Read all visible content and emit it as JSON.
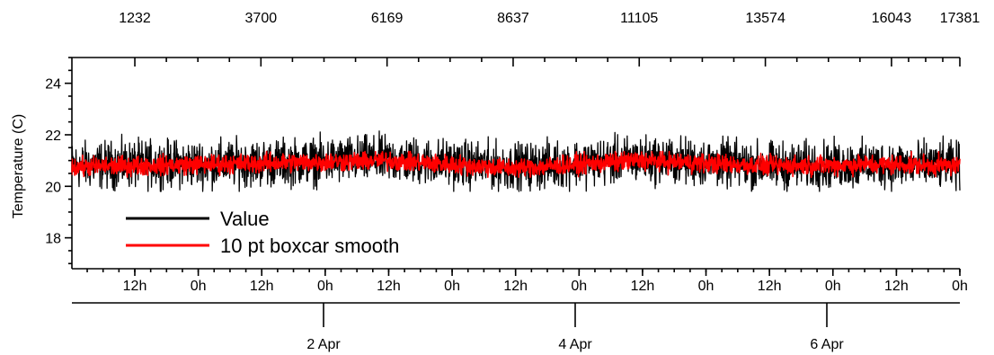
{
  "chart_data": {
    "type": "line",
    "title": "",
    "ylabel": "Temperature (C)",
    "ylim": [
      16.8,
      25.0
    ],
    "y_ticks": [
      18,
      20,
      22,
      24
    ],
    "x_index_range": [
      0,
      17381
    ],
    "x_top_ticks": [
      "1232",
      "3700",
      "6169",
      "8637",
      "11105",
      "13574",
      "16043",
      "17381"
    ],
    "x_hour_labels": [
      "12h",
      "0h",
      "12h",
      "0h",
      "12h",
      "0h",
      "12h",
      "0h",
      "12h",
      "0h",
      "12h",
      "0h",
      "12h",
      "0h"
    ],
    "x_date_labels": [
      "2 Apr",
      "4 Apr",
      "6 Apr"
    ],
    "legend_position": "lower-left",
    "grid": false,
    "series": [
      {
        "name": "Value",
        "color": "#000000",
        "baseline": [
          [
            0,
            20.8
          ],
          [
            1232,
            20.85
          ],
          [
            3700,
            20.9
          ],
          [
            6169,
            21.05
          ],
          [
            8637,
            20.75
          ],
          [
            11105,
            21.05
          ],
          [
            13574,
            20.8
          ],
          [
            16043,
            20.85
          ],
          [
            17381,
            20.8
          ]
        ],
        "band_min": 19.8,
        "band_max": 22.2
      },
      {
        "name": "10 pt boxcar smooth",
        "color": "#ff0000",
        "baseline": [
          [
            0,
            20.75
          ],
          [
            1232,
            20.8
          ],
          [
            3700,
            20.9
          ],
          [
            6169,
            21.0
          ],
          [
            8637,
            20.7
          ],
          [
            11105,
            21.0
          ],
          [
            13574,
            20.8
          ],
          [
            16043,
            20.85
          ],
          [
            17381,
            20.8
          ]
        ],
        "band_min": 20.35,
        "band_max": 21.35
      }
    ]
  }
}
